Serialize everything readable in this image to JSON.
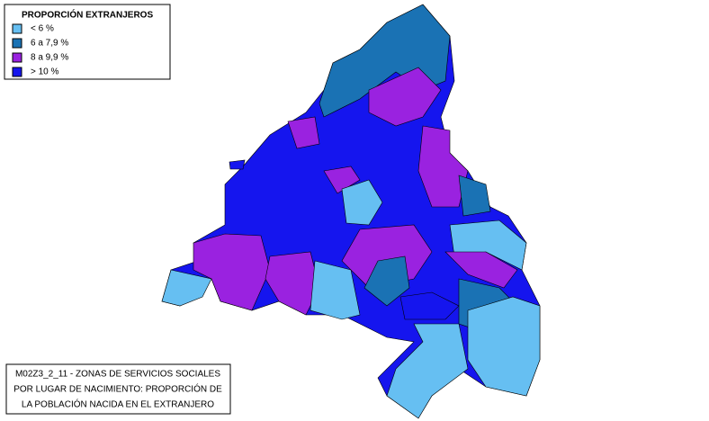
{
  "legend": {
    "title": "PROPORCIÓN EXTRANJEROS",
    "items": [
      {
        "label": "< 6 %",
        "color": "#66bff2"
      },
      {
        "label": "6 a 7,9 %",
        "color": "#1a72b4"
      },
      {
        "label": "8 a 9,9 %",
        "color": "#9a22e0"
      },
      {
        "label": "> 10 %",
        "color": "#1515ee"
      }
    ]
  },
  "caption": {
    "lines": [
      "M02Z3_2_11 - ZONAS DE SERVICIOS SOCIALES",
      "POR LUGAR DE NACIMIENTO: PROPORCIÓN DE",
      "LA POBLACIÓN NACIDA EN EL EXTRANJERO"
    ]
  }
}
